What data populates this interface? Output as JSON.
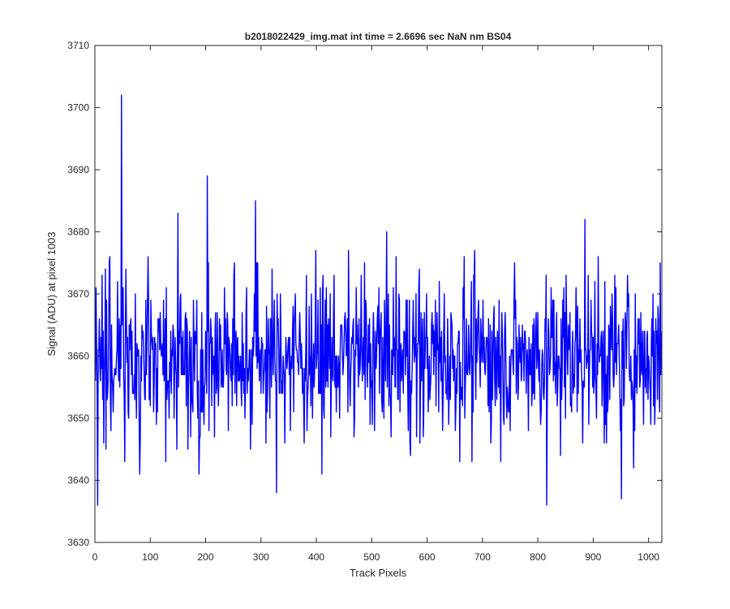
{
  "chart_data": {
    "type": "line",
    "title": "b2018022429_img.mat int time = 2.6696 sec  NaN nm BS04",
    "xlabel": "Track Pixels",
    "ylabel": "Signal (ADU) at pixel 1003",
    "xlim": [
      0,
      1024
    ],
    "ylim": [
      3630,
      3710
    ],
    "xticks": [
      0,
      100,
      200,
      300,
      400,
      500,
      600,
      700,
      800,
      900,
      1000
    ],
    "yticks": [
      3630,
      3640,
      3650,
      3660,
      3670,
      3680,
      3690,
      3700,
      3710
    ],
    "grid": false,
    "series": [
      {
        "color": "#0000ff",
        "n_points": 1024,
        "mean": 3660,
        "std": 8,
        "notable_points": [
          {
            "x": 1,
            "y": 3671
          },
          {
            "x": 4,
            "y": 3636
          },
          {
            "x": 19,
            "y": 3645
          },
          {
            "x": 47,
            "y": 3702
          },
          {
            "x": 53,
            "y": 3643
          },
          {
            "x": 80,
            "y": 3641
          },
          {
            "x": 149,
            "y": 3683
          },
          {
            "x": 187,
            "y": 3641
          },
          {
            "x": 202,
            "y": 3689
          },
          {
            "x": 289,
            "y": 3685
          },
          {
            "x": 327,
            "y": 3638
          },
          {
            "x": 884,
            "y": 3682
          },
          {
            "x": 815,
            "y": 3636
          },
          {
            "x": 950,
            "y": 3637
          },
          {
            "x": 1020,
            "y": 3675
          }
        ]
      }
    ]
  }
}
